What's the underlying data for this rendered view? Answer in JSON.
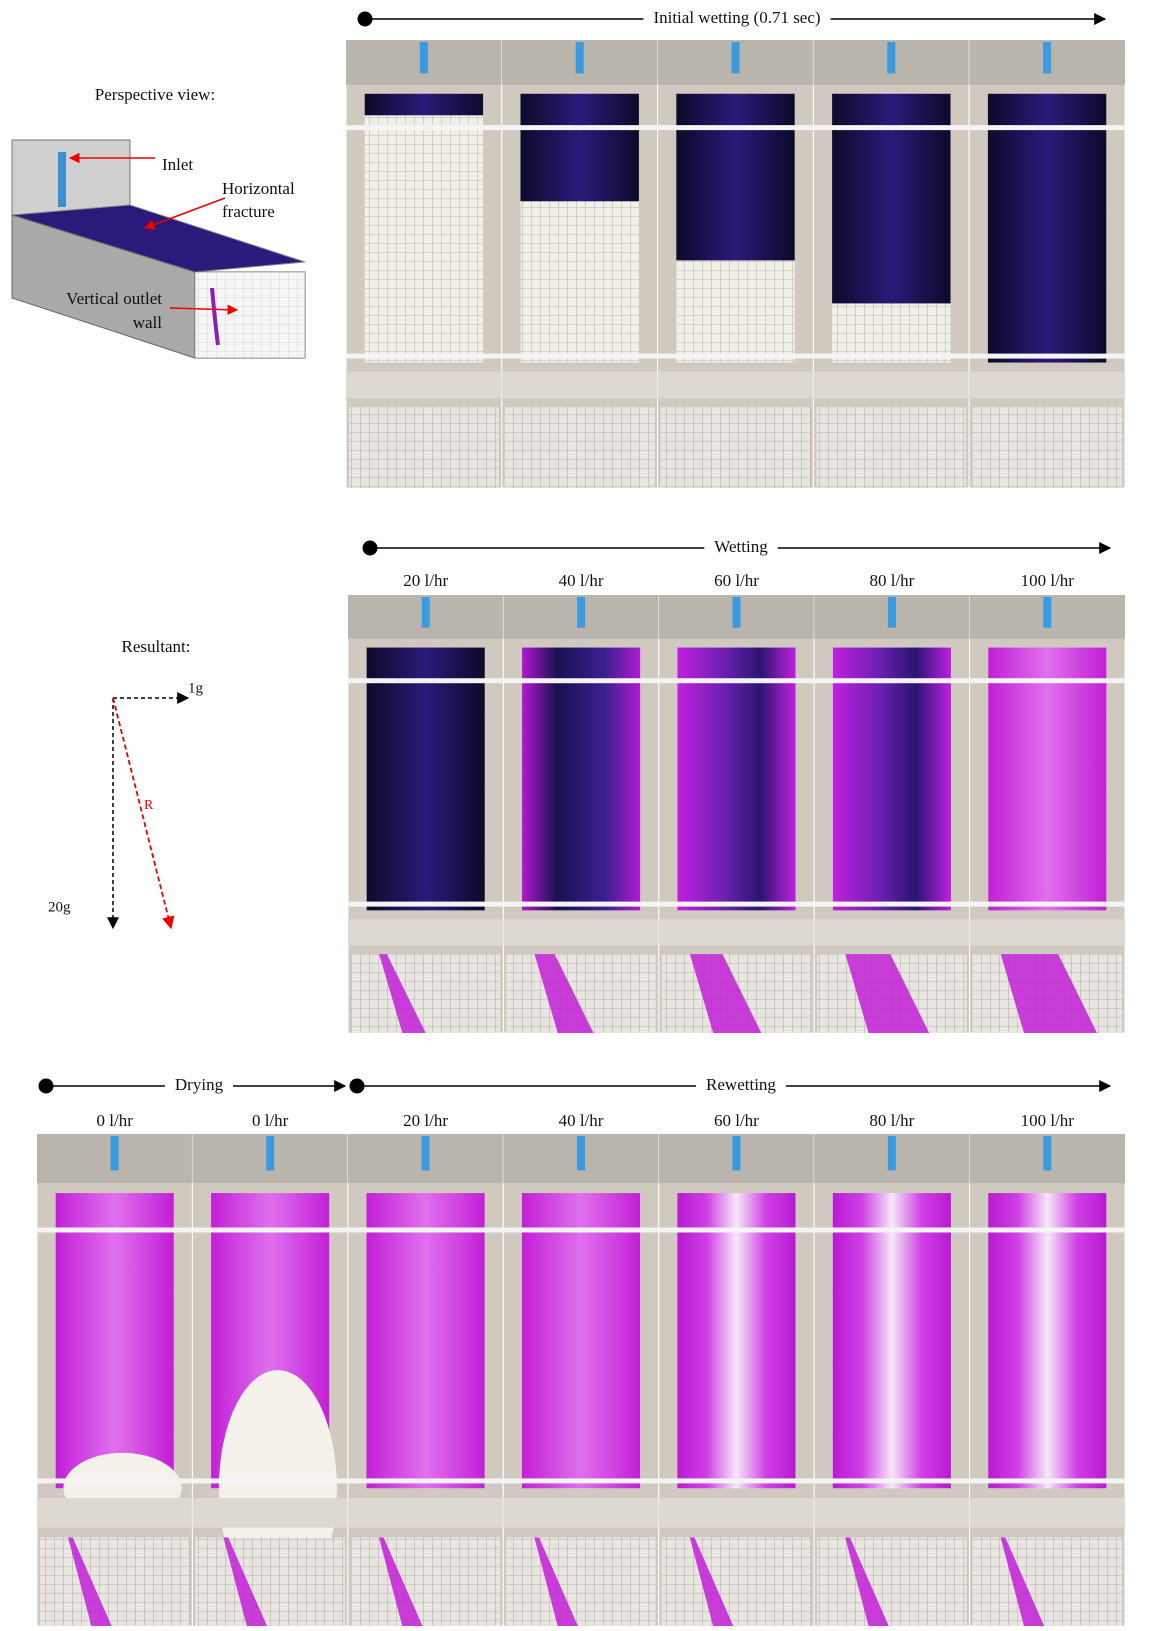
{
  "perspective": {
    "title": "Perspective view:",
    "inlet": "Inlet",
    "fracture": [
      "Horizontal",
      "fracture"
    ],
    "outlet": [
      "Vertical outlet",
      "wall"
    ]
  },
  "initial_wetting": {
    "label": "Initial wetting (0.71 sec)"
  },
  "wetting": {
    "label": "Wetting",
    "flows": [
      "20 l/hr",
      "40 l/hr",
      "60 l/hr",
      "80 l/hr",
      "100 l/hr"
    ]
  },
  "resultant": {
    "title": "Resultant:",
    "x_label": "1g",
    "vector_label": "R",
    "y_label": "20g"
  },
  "drying": {
    "label": "Drying",
    "flows": [
      "0 l/hr",
      "0 l/hr"
    ]
  },
  "rewetting": {
    "label": "Rewetting",
    "flows": [
      "20 l/hr",
      "40 l/hr",
      "60 l/hr",
      "80 l/hr",
      "100 l/hr"
    ]
  }
}
